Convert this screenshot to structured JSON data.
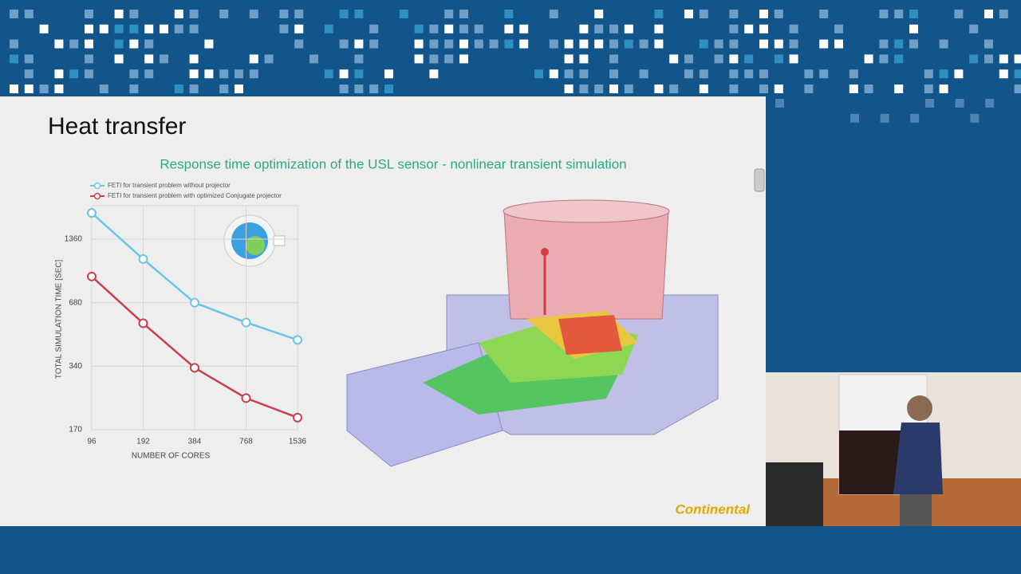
{
  "slide": {
    "title": "Heat transfer",
    "subtitle": "Response time optimization of the USL sensor - nonlinear transient simulation",
    "logo": "Continental"
  },
  "chart_data": {
    "type": "line",
    "x_label": "NUMBER OF CORES",
    "y_label": "TOTAL SIMULATION TIME [SEC]",
    "categories": [
      "96",
      "192",
      "384",
      "768",
      "1536"
    ],
    "series": [
      {
        "name": "FETI for transient problem without projector",
        "color": "#6cc4e4",
        "values": [
          1810,
          1095,
          680,
          548,
          453
        ]
      },
      {
        "name": "FETI for transient problem with optimized Conjugate projector",
        "color": "#c8404e",
        "values": [
          905,
          543,
          334,
          240,
          194
        ]
      }
    ],
    "ylim": [
      170,
      1960
    ],
    "yticks": [
      170,
      340,
      680,
      1360
    ],
    "yscale": "log",
    "grid": true,
    "legend": "top-left"
  }
}
